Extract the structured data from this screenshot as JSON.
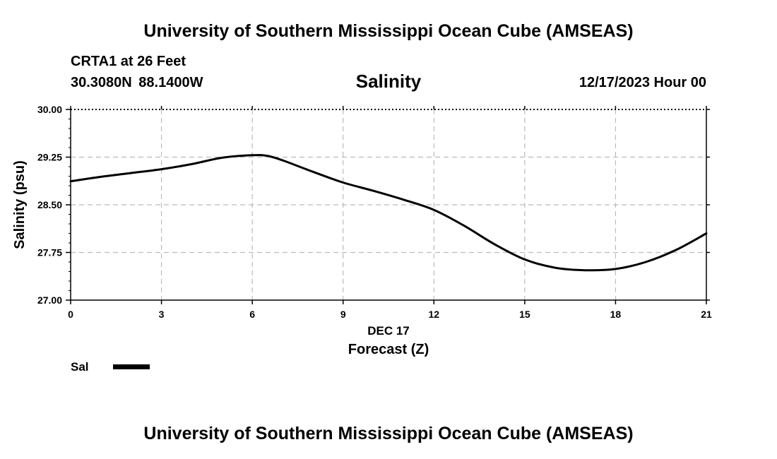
{
  "header": {
    "title": "University of Southern Mississippi Ocean Cube (AMSEAS)",
    "station": "CRTA1 at 26 Feet",
    "coords": "30.3080N 88.1400W",
    "variable": "Salinity",
    "datetime": "12/17/2023 Hour 00"
  },
  "footer": {
    "title": "University of Southern Mississippi Ocean Cube (AMSEAS)"
  },
  "legend": {
    "label": "Sal",
    "color": "#000000"
  },
  "chart_data": {
    "type": "line",
    "title": "Salinity",
    "xlabel": "Forecast (Z)",
    "xlabel_date": "DEC 17",
    "ylabel": "Salinity (psu)",
    "xlim": [
      0,
      21
    ],
    "ylim": [
      27.0,
      30.0
    ],
    "xticks": [
      0,
      3,
      6,
      9,
      12,
      15,
      18,
      21
    ],
    "xtick_labels": [
      "0",
      "3",
      "6",
      "9",
      "12",
      "15",
      "18",
      "21"
    ],
    "yticks": [
      27.0,
      27.75,
      28.5,
      29.25,
      30.0
    ],
    "ytick_labels": [
      "27.00",
      "27.75",
      "28.50",
      "29.25",
      "30.00"
    ],
    "grid": true,
    "series": [
      {
        "name": "Sal",
        "color": "#000000",
        "x": [
          0,
          1,
          2,
          3,
          4,
          5,
          6,
          6.5,
          7,
          8,
          9,
          10,
          11,
          12,
          13,
          14,
          15,
          16,
          17,
          18,
          19,
          20,
          21
        ],
        "y": [
          28.87,
          28.94,
          29.0,
          29.06,
          29.14,
          29.24,
          29.28,
          29.27,
          29.2,
          29.02,
          28.85,
          28.72,
          28.58,
          28.42,
          28.17,
          27.88,
          27.64,
          27.51,
          27.47,
          27.49,
          27.6,
          27.79,
          28.05
        ]
      }
    ]
  }
}
